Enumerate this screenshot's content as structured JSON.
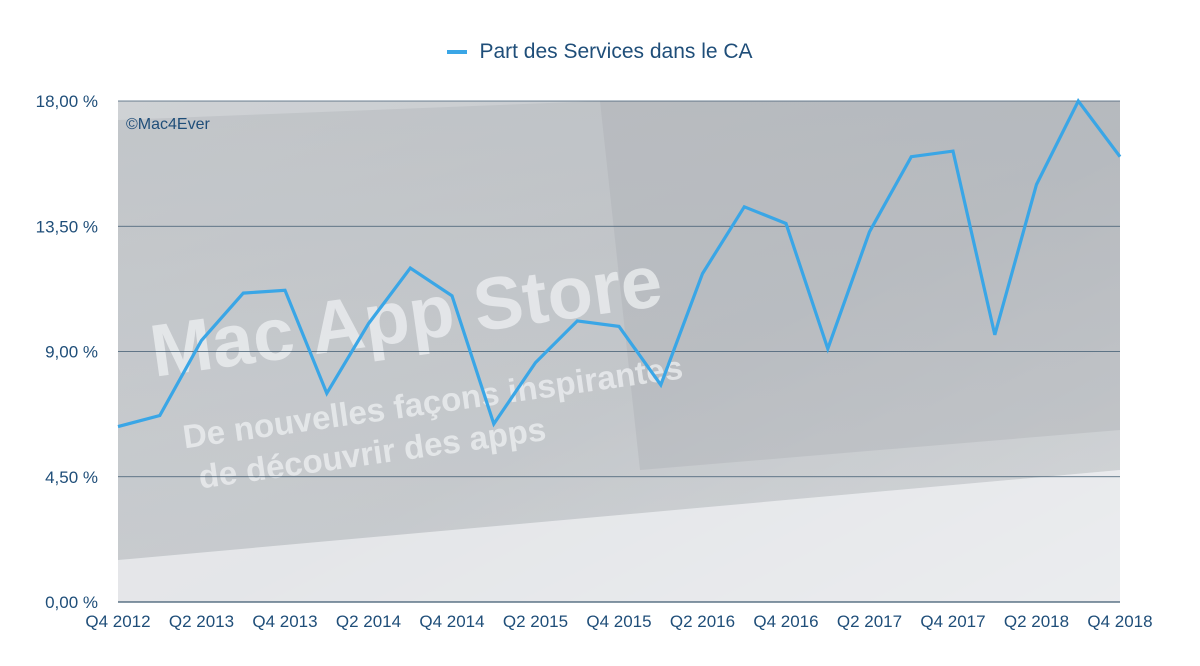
{
  "watermark": "©Mac4Ever",
  "background_image_text": {
    "title": "Mac App Store",
    "subtitle_line1": "De nouvelles façons inspirantes",
    "subtitle_line2": "de découvrir des apps"
  },
  "colors": {
    "series": "#3aa6e6",
    "text": "#1f4e79",
    "grid": "#3f5a70",
    "plot_bg": "#d7dadd"
  },
  "chart_data": {
    "type": "line",
    "title": "",
    "xlabel": "",
    "ylabel": "",
    "ylim": [
      0,
      18
    ],
    "y_ticks": [
      "0,00 %",
      "4,50 %",
      "9,00 %",
      "13,50 %",
      "18,00 %"
    ],
    "y_tick_values": [
      0,
      4.5,
      9,
      13.5,
      18
    ],
    "x_tick_labels": [
      "Q4 2012",
      "Q2 2013",
      "Q4 2013",
      "Q2 2014",
      "Q4 2014",
      "Q2 2015",
      "Q4 2015",
      "Q2 2016",
      "Q4 2016",
      "Q2 2017",
      "Q4 2017",
      "Q2 2018",
      "Q4 2018"
    ],
    "grid": true,
    "legend_position": "top-center",
    "series": [
      {
        "name": "Part des Services dans le CA",
        "values": [
          6.3,
          6.7,
          9.4,
          11.1,
          11.2,
          7.5,
          10.0,
          12.0,
          11.0,
          6.4,
          8.6,
          10.1,
          9.9,
          7.8,
          11.8,
          14.2,
          13.6,
          9.1,
          13.3,
          16.0,
          16.2,
          9.6,
          15.0,
          18.0,
          16.0
        ]
      }
    ]
  }
}
